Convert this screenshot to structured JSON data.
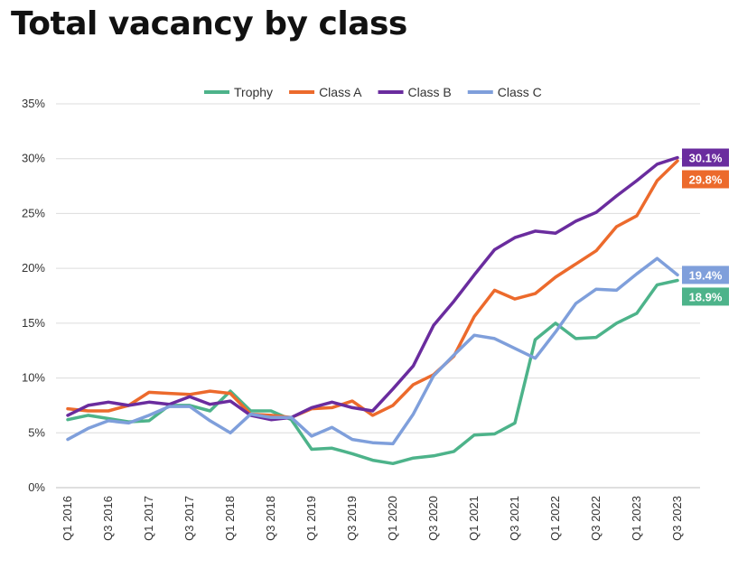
{
  "title": "Total vacancy by class",
  "chart_data": {
    "type": "line",
    "x": [
      "Q1 2016",
      "Q2 2016",
      "Q3 2016",
      "Q4 2016",
      "Q1 2017",
      "Q2 2017",
      "Q3 2017",
      "Q4 2017",
      "Q1 2018",
      "Q2 2018",
      "Q3 2018",
      "Q4 2018",
      "Q1 2019",
      "Q2 2019",
      "Q3 2019",
      "Q4 2019",
      "Q1 2020",
      "Q2 2020",
      "Q3 2020",
      "Q4 2020",
      "Q1 2021",
      "Q2 2021",
      "Q3 2021",
      "Q4 2021",
      "Q1 2022",
      "Q2 2022",
      "Q3 2022",
      "Q4 2022",
      "Q1 2023",
      "Q2 2023",
      "Q3 2023"
    ],
    "x_tick_labels": [
      "Q1 2016",
      "Q3 2016",
      "Q1 2017",
      "Q3 2017",
      "Q1 2018",
      "Q3 2018",
      "Q1 2019",
      "Q3 2019",
      "Q1 2020",
      "Q3 2020",
      "Q1 2021",
      "Q3 2021",
      "Q1 2022",
      "Q3 2022",
      "Q1 2023",
      "Q3 2023"
    ],
    "y_ticks": [
      "0%",
      "5%",
      "10%",
      "15%",
      "20%",
      "25%",
      "30%",
      "35%"
    ],
    "ylim": [
      0,
      35
    ],
    "grid": true,
    "legend_position": "top-center",
    "series": [
      {
        "name": "Trophy",
        "color": "#4db38a",
        "values": [
          6.2,
          6.6,
          6.3,
          6.0,
          6.1,
          7.5,
          7.5,
          7.0,
          8.8,
          7.0,
          7.0,
          6.2,
          3.5,
          3.6,
          3.1,
          2.5,
          2.2,
          2.7,
          2.9,
          3.3,
          4.8,
          4.9,
          5.9,
          13.5,
          15.0,
          13.6,
          13.7,
          15.0,
          15.9,
          18.5,
          18.9
        ],
        "end_label": "18.9%"
      },
      {
        "name": "Class A",
        "color": "#ec6a2c",
        "values": [
          7.2,
          7.0,
          7.0,
          7.5,
          8.7,
          8.6,
          8.5,
          8.8,
          8.6,
          6.7,
          6.6,
          6.4,
          7.2,
          7.3,
          7.9,
          6.6,
          7.5,
          9.4,
          10.3,
          12.0,
          15.6,
          18.0,
          17.2,
          17.7,
          19.2,
          20.4,
          21.6,
          23.8,
          24.8,
          28.0,
          29.8
        ],
        "end_label": "29.8%"
      },
      {
        "name": "Class B",
        "color": "#6a2c9e",
        "values": [
          6.6,
          7.5,
          7.8,
          7.5,
          7.8,
          7.6,
          8.3,
          7.6,
          7.9,
          6.6,
          6.2,
          6.4,
          7.3,
          7.8,
          7.3,
          7.0,
          9.0,
          11.1,
          14.8,
          17.0,
          19.4,
          21.7,
          22.8,
          23.4,
          23.2,
          24.3,
          25.1,
          26.6,
          28.0,
          29.5,
          30.1
        ],
        "end_label": "30.1%"
      },
      {
        "name": "Class C",
        "color": "#7f9fdb",
        "values": [
          4.4,
          5.4,
          6.1,
          5.9,
          6.6,
          7.4,
          7.4,
          6.1,
          5.0,
          6.7,
          6.4,
          6.4,
          4.7,
          5.5,
          4.4,
          4.1,
          4.0,
          6.7,
          10.2,
          12.1,
          13.9,
          13.6,
          12.7,
          11.8,
          14.2,
          16.8,
          18.1,
          18.0,
          19.5,
          20.9,
          19.4
        ],
        "end_label": "19.4%"
      }
    ]
  }
}
